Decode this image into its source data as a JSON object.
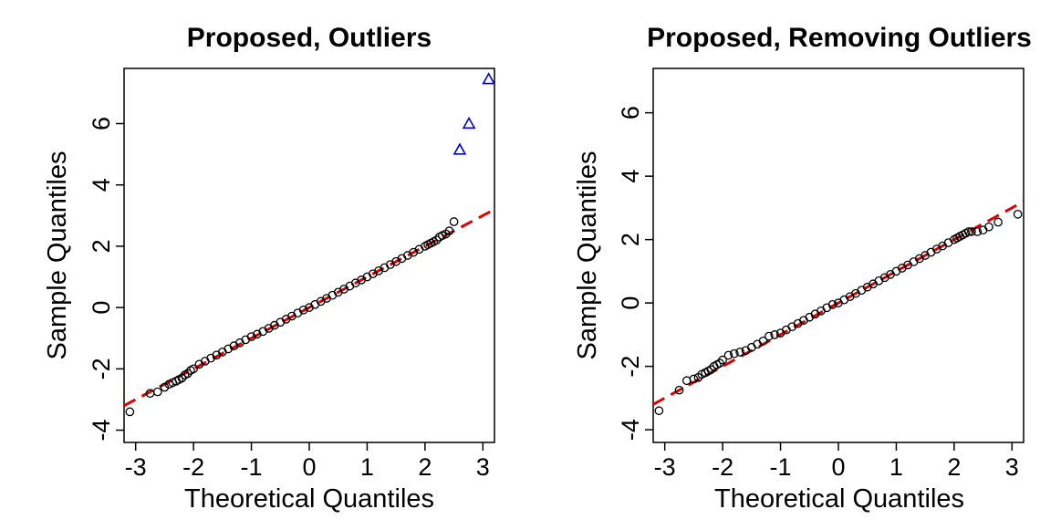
{
  "colors": {
    "points": "#000000",
    "outliers": "#0000cc",
    "reference_line": "#dd0000"
  },
  "chart_data": [
    {
      "type": "scatter",
      "subtype": "qq-plot",
      "title": "Proposed, Outliers",
      "xlabel": "Theoretical Quantiles",
      "ylabel": "Sample Quantiles",
      "xlim": [
        -3.2,
        3.2
      ],
      "ylim": [
        -4.4,
        7.8
      ],
      "xticks": [
        "-3",
        "-2",
        "-1",
        "0",
        "1",
        "2",
        "3"
      ],
      "yticks": [
        "-4",
        "-2",
        "0",
        "2",
        "4",
        "6"
      ],
      "reference_line": {
        "intercept": 0.0,
        "slope": 1.0,
        "style": "dashed"
      },
      "series": [
        {
          "marker": "circle",
          "x": [
            -3.1,
            -2.75,
            -2.62,
            -2.5,
            -2.42,
            -2.36,
            -2.3,
            -2.25,
            -2.2,
            -2.15,
            -2.1,
            -2.05,
            -2.0,
            -1.9,
            -1.8,
            -1.7,
            -1.6,
            -1.5,
            -1.4,
            -1.3,
            -1.2,
            -1.1,
            -1.0,
            -0.9,
            -0.8,
            -0.7,
            -0.6,
            -0.5,
            -0.4,
            -0.3,
            -0.2,
            -0.1,
            0.0,
            0.1,
            0.2,
            0.3,
            0.4,
            0.5,
            0.6,
            0.7,
            0.8,
            0.9,
            1.0,
            1.1,
            1.2,
            1.3,
            1.4,
            1.5,
            1.6,
            1.7,
            1.8,
            1.9,
            2.0,
            2.05,
            2.1,
            2.15,
            2.2,
            2.25,
            2.3,
            2.36,
            2.42,
            2.5
          ],
          "y": [
            -3.4,
            -2.8,
            -2.75,
            -2.6,
            -2.5,
            -2.45,
            -2.4,
            -2.35,
            -2.3,
            -2.2,
            -2.15,
            -2.05,
            -2.0,
            -1.85,
            -1.75,
            -1.65,
            -1.55,
            -1.45,
            -1.35,
            -1.25,
            -1.15,
            -1.05,
            -0.95,
            -0.87,
            -0.78,
            -0.68,
            -0.58,
            -0.48,
            -0.38,
            -0.28,
            -0.18,
            -0.08,
            0.0,
            0.1,
            0.2,
            0.3,
            0.4,
            0.5,
            0.6,
            0.7,
            0.8,
            0.9,
            1.0,
            1.1,
            1.2,
            1.3,
            1.4,
            1.5,
            1.6,
            1.7,
            1.8,
            1.9,
            2.0,
            2.05,
            2.1,
            2.15,
            2.2,
            2.3,
            2.35,
            2.4,
            2.5,
            2.8
          ]
        },
        {
          "marker": "triangle",
          "x": [
            2.6,
            2.76,
            3.1
          ],
          "y": [
            5.15,
            6.0,
            7.45
          ]
        }
      ]
    },
    {
      "type": "scatter",
      "subtype": "qq-plot",
      "title": "Proposed, Removing Outliers",
      "xlabel": "Theoretical Quantiles",
      "ylabel": "Sample Quantiles",
      "xlim": [
        -3.2,
        3.2
      ],
      "ylim": [
        -4.4,
        7.4
      ],
      "xticks": [
        "-3",
        "-2",
        "-1",
        "0",
        "1",
        "2",
        "3"
      ],
      "yticks": [
        "-4",
        "-2",
        "0",
        "2",
        "4",
        "6"
      ],
      "reference_line": {
        "intercept": 0.0,
        "slope": 1.0,
        "style": "dashed"
      },
      "series": [
        {
          "marker": "circle",
          "x": [
            -3.1,
            -2.75,
            -2.62,
            -2.5,
            -2.42,
            -2.36,
            -2.3,
            -2.25,
            -2.2,
            -2.15,
            -2.1,
            -2.05,
            -2.0,
            -1.9,
            -1.8,
            -1.7,
            -1.6,
            -1.5,
            -1.4,
            -1.3,
            -1.2,
            -1.1,
            -1.0,
            -0.9,
            -0.8,
            -0.7,
            -0.6,
            -0.5,
            -0.4,
            -0.3,
            -0.2,
            -0.1,
            0.0,
            0.1,
            0.2,
            0.3,
            0.4,
            0.5,
            0.6,
            0.7,
            0.8,
            0.9,
            1.0,
            1.1,
            1.2,
            1.3,
            1.4,
            1.5,
            1.6,
            1.7,
            1.8,
            1.9,
            2.0,
            2.05,
            2.1,
            2.15,
            2.2,
            2.25,
            2.3,
            2.4,
            2.5,
            2.6,
            2.76,
            3.1
          ],
          "y": [
            -3.4,
            -2.75,
            -2.45,
            -2.4,
            -2.35,
            -2.25,
            -2.2,
            -2.15,
            -2.1,
            -2.0,
            -1.95,
            -1.9,
            -1.8,
            -1.65,
            -1.6,
            -1.55,
            -1.5,
            -1.4,
            -1.3,
            -1.2,
            -1.05,
            -1.0,
            -0.95,
            -0.85,
            -0.75,
            -0.65,
            -0.55,
            -0.45,
            -0.35,
            -0.25,
            -0.15,
            -0.05,
            0.0,
            0.1,
            0.2,
            0.3,
            0.4,
            0.5,
            0.6,
            0.7,
            0.8,
            0.9,
            1.0,
            1.1,
            1.2,
            1.3,
            1.4,
            1.5,
            1.6,
            1.7,
            1.8,
            1.9,
            2.0,
            2.05,
            2.1,
            2.15,
            2.2,
            2.25,
            2.25,
            2.25,
            2.3,
            2.4,
            2.55,
            2.8
          ]
        }
      ]
    }
  ]
}
